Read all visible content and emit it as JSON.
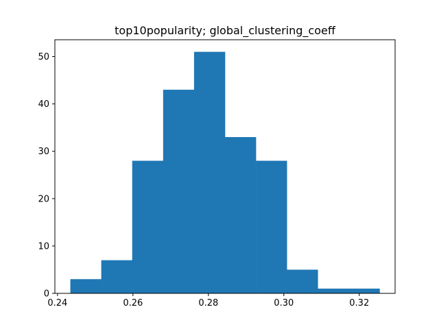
{
  "chart_data": {
    "type": "bar",
    "title": "top10popularity; global_clustering_coeff",
    "xlabel": "",
    "ylabel": "",
    "bin_edges": [
      0.2434,
      0.2516,
      0.2598,
      0.268,
      0.2762,
      0.2844,
      0.2926,
      0.3008,
      0.309,
      0.3172,
      0.3254
    ],
    "values": [
      3,
      7,
      28,
      43,
      51,
      33,
      28,
      5,
      1,
      1
    ],
    "xlim": [
      0.2393,
      0.3295
    ],
    "ylim": [
      0,
      53.55
    ],
    "xticks": [
      0.24,
      0.26,
      0.28,
      0.3,
      0.32
    ],
    "xtick_labels": [
      "0.24",
      "0.26",
      "0.28",
      "0.30",
      "0.32"
    ],
    "yticks": [
      0,
      10,
      20,
      30,
      40,
      50
    ],
    "ytick_labels": [
      "0",
      "10",
      "20",
      "30",
      "40",
      "50"
    ],
    "bar_color": "#1f77b4",
    "grid": false,
    "legend": "none"
  }
}
